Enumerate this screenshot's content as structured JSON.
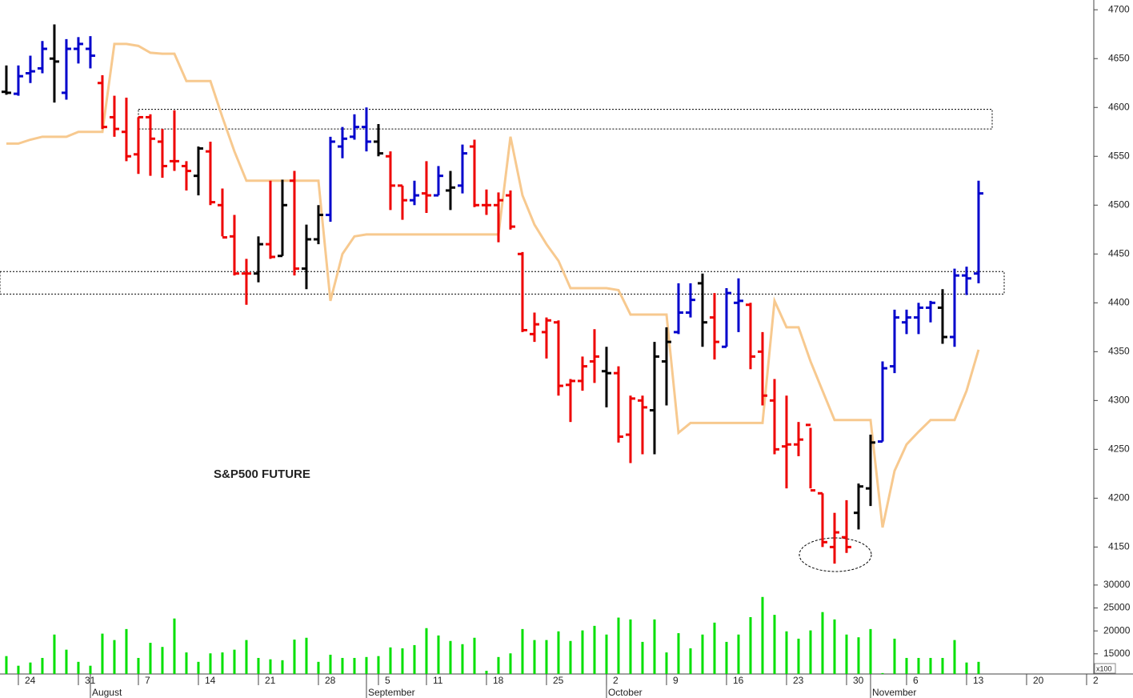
{
  "chart_data": {
    "type": "ohlc",
    "annotation": "S&P500 FUTURE",
    "categories": [
      null,
      null,
      null,
      null,
      null,
      null,
      null,
      null,
      null,
      null,
      null,
      null,
      null,
      null,
      null,
      null,
      null,
      null,
      null,
      null,
      null,
      null,
      null,
      null,
      null,
      null,
      null,
      null,
      null,
      null,
      null,
      null,
      null,
      null,
      null,
      null,
      null,
      null,
      null,
      null,
      null,
      null,
      null,
      null,
      null,
      null,
      null,
      null,
      null,
      null,
      null,
      null,
      null,
      null,
      null,
      null,
      null,
      null,
      null,
      null,
      null,
      null,
      null,
      null,
      null,
      null,
      null,
      null,
      null,
      null,
      null,
      null,
      null,
      null,
      null,
      null,
      null,
      null,
      null,
      null,
      null,
      null
    ],
    "open": [
      4616,
      4614,
      4635,
      4640,
      4650,
      4615,
      4660,
      4660,
      4625,
      4590,
      4575,
      4552,
      4590,
      4565,
      4545,
      4540,
      4530,
      4555,
      4500,
      4468,
      4430,
      4430,
      4460,
      4448,
      4525,
      4435,
      4465,
      4490,
      4560,
      4570,
      4580,
      4565,
      4550,
      4520,
      4505,
      4512,
      4510,
      4515,
      4520,
      4560,
      4500,
      4500,
      4510,
      4450,
      4368,
      4370,
      4380,
      4316,
      4320,
      4340,
      4330,
      4328,
      4265,
      4300,
      4290,
      4340,
      4370,
      4390,
      4420,
      4385,
      4355,
      4400,
      4398,
      4350,
      4300,
      4253,
      4255,
      4275,
      4205,
      4150,
      4160,
      4185,
      4210,
      4258,
      4335,
      4380,
      4385,
      4395,
      4395,
      4365,
      4428,
      4430
    ],
    "high": [
      4643,
      4643,
      4653,
      4668,
      4685,
      4670,
      4672,
      4673,
      4633,
      4612,
      4610,
      4590,
      4593,
      4578,
      4597,
      4545,
      4560,
      4565,
      4517,
      4490,
      4445,
      4468,
      4525,
      4526,
      4535,
      4480,
      4500,
      4570,
      4580,
      4593,
      4600,
      4583,
      4555,
      4520,
      4525,
      4545,
      4540,
      4535,
      4562,
      4567,
      4516,
      4513,
      4515,
      4452,
      4390,
      4385,
      4382,
      4322,
      4345,
      4373,
      4355,
      4335,
      4305,
      4305,
      4360,
      4375,
      4420,
      4420,
      4430,
      4410,
      4415,
      4425,
      4400,
      4370,
      4322,
      4305,
      4278,
      4272,
      4205,
      4185,
      4198,
      4215,
      4265,
      4340,
      4393,
      4393,
      4400,
      4402,
      4414,
      4435,
      4437,
      4525
    ],
    "low": [
      4613,
      4612,
      4625,
      4635,
      4605,
      4608,
      4645,
      4640,
      4578,
      4570,
      4545,
      4532,
      4530,
      4528,
      4535,
      4515,
      4510,
      4500,
      4468,
      4428,
      4398,
      4421,
      4445,
      4448,
      4428,
      4414,
      4460,
      4483,
      4548,
      4567,
      4555,
      4550,
      4495,
      4485,
      4500,
      4492,
      4510,
      4495,
      4512,
      4498,
      4490,
      4462,
      4475,
      4370,
      4360,
      4343,
      4305,
      4278,
      4310,
      4318,
      4293,
      4257,
      4236,
      4245,
      4245,
      4295,
      4368,
      4385,
      4355,
      4342,
      4355,
      4370,
      4332,
      4295,
      4245,
      4210,
      4243,
      4210,
      4150,
      4133,
      4144,
      4168,
      4192,
      4258,
      4328,
      4368,
      4368,
      4380,
      4358,
      4355,
      4408,
      4420
    ],
    "close": [
      4615,
      4632,
      4637,
      4660,
      4647,
      4660,
      4665,
      4653,
      4580,
      4578,
      4550,
      4590,
      4568,
      4540,
      4545,
      4535,
      4558,
      4503,
      4467,
      4430,
      4430,
      4460,
      4447,
      4500,
      4435,
      4465,
      4490,
      4565,
      4568,
      4580,
      4565,
      4553,
      4520,
      4505,
      4510,
      4510,
      4530,
      4518,
      4553,
      4500,
      4500,
      4505,
      4478,
      4372,
      4378,
      4382,
      4315,
      4320,
      4335,
      4345,
      4328,
      4263,
      4302,
      4293,
      4345,
      4360,
      4390,
      4403,
      4380,
      4360,
      4410,
      4402,
      4345,
      4305,
      4250,
      4255,
      4260,
      4208,
      4155,
      4165,
      4150,
      4212,
      4257,
      4333,
      4385,
      4385,
      4395,
      4400,
      4365,
      4428,
      4425,
      4512
    ],
    "colors": [
      "#000000",
      "#0000cc",
      "#0000cc",
      "#0000cc",
      "#000000",
      "#0000cc",
      "#0000cc",
      "#0000cc",
      "#ee0000",
      "#ee0000",
      "#ee0000",
      "#ee0000",
      "#ee0000",
      "#ee0000",
      "#ee0000",
      "#ee0000",
      "#000000",
      "#ee0000",
      "#ee0000",
      "#ee0000",
      "#ee0000",
      "#000000",
      "#ee0000",
      "#000000",
      "#ee0000",
      "#000000",
      "#000000",
      "#0000cc",
      "#0000cc",
      "#0000cc",
      "#0000cc",
      "#000000",
      "#ee0000",
      "#ee0000",
      "#0000cc",
      "#ee0000",
      "#0000cc",
      "#000000",
      "#0000cc",
      "#ee0000",
      "#ee0000",
      "#ee0000",
      "#ee0000",
      "#ee0000",
      "#ee0000",
      "#ee0000",
      "#ee0000",
      "#ee0000",
      "#ee0000",
      "#ee0000",
      "#000000",
      "#ee0000",
      "#ee0000",
      "#ee0000",
      "#000000",
      "#000000",
      "#0000cc",
      "#0000cc",
      "#000000",
      "#ee0000",
      "#0000cc",
      "#0000cc",
      "#ee0000",
      "#ee0000",
      "#ee0000",
      "#ee0000",
      "#ee0000",
      "#ee0000",
      "#ee0000",
      "#ee0000",
      "#ee0000",
      "#000000",
      "#000000",
      "#0000cc",
      "#0000cc",
      "#0000cc",
      "#0000cc",
      "#0000cc",
      "#000000",
      "#0000cc",
      "#0000cc",
      "#0000cc"
    ],
    "stop_line": {
      "color": "#f7c98f",
      "values": [
        4563,
        4563,
        4567,
        4570,
        4570,
        4570,
        4575,
        4575,
        4575,
        4665,
        4665,
        4663,
        4656,
        4655,
        4655,
        4627,
        4627,
        4627,
        4590,
        4555,
        4525,
        4525,
        4525,
        4525,
        4525,
        4525,
        4525,
        4402,
        4450,
        4468,
        4470,
        4470,
        4470,
        4470,
        4470,
        4470,
        4470,
        4470,
        4470,
        4470,
        4470,
        4470,
        4570,
        4510,
        4480,
        4460,
        4443,
        4415,
        4415,
        4415,
        4415,
        4413,
        4388,
        4388,
        4388,
        4388,
        4267,
        4277,
        4277,
        4277,
        4277,
        4277,
        4277,
        4277,
        4402,
        4375,
        4375,
        4340,
        4310,
        4280,
        4280,
        4280,
        4280,
        4170,
        4228,
        4255,
        4268,
        4280,
        4280,
        4280,
        4310,
        4352
      ]
    },
    "zones": [
      [
        4578,
        4598
      ],
      [
        4409,
        4432
      ]
    ],
    "xlim": [
      -0.53,
      90.6
    ],
    "ylim": [
      4120,
      4710
    ],
    "yticks": [
      4150,
      4200,
      4250,
      4300,
      4350,
      4400,
      4450,
      4500,
      4550,
      4600,
      4650,
      4700
    ],
    "xticks": [
      {
        "value": 1,
        "label": "24"
      },
      {
        "value": 6,
        "label": "31"
      },
      {
        "value": 11,
        "label": "7"
      },
      {
        "value": 16,
        "label": "14"
      },
      {
        "value": 21,
        "label": "21"
      },
      {
        "value": 26,
        "label": "28"
      },
      {
        "value": 31,
        "label": "5"
      },
      {
        "value": 35,
        "label": "11"
      },
      {
        "value": 40,
        "label": "18"
      },
      {
        "value": 45,
        "label": "25"
      },
      {
        "value": 50,
        "label": "2"
      },
      {
        "value": 55,
        "label": "9"
      },
      {
        "value": 60,
        "label": "16"
      },
      {
        "value": 65,
        "label": "23"
      },
      {
        "value": 70,
        "label": "30"
      },
      {
        "value": 75,
        "label": "6"
      },
      {
        "value": 80,
        "label": "13"
      },
      {
        "value": 85,
        "label": "20"
      },
      {
        "value": 90,
        "label": "2"
      }
    ],
    "month_ticks": [
      {
        "value": 7,
        "label": "August"
      },
      {
        "value": 30,
        "label": "September"
      },
      {
        "value": 50,
        "label": "October"
      },
      {
        "value": 72,
        "label": "November"
      }
    ],
    "volume": {
      "color": "#00e000",
      "unit_label": "x100",
      "ylim": [
        10600,
        31900
      ],
      "yticks": [
        15000,
        20000,
        25000,
        30000
      ],
      "values": [
        14500,
        12400,
        13100,
        14100,
        19200,
        15900,
        13250,
        12400,
        19400,
        18000,
        20400,
        14100,
        17400,
        16500,
        22700,
        15300,
        13250,
        15100,
        15300,
        15900,
        18000,
        14100,
        13800,
        13600,
        18100,
        18500,
        13250,
        14800,
        14100,
        14100,
        14300,
        14500,
        16400,
        16200,
        16900,
        20600,
        19000,
        17800,
        17100,
        18500,
        11300,
        14300,
        15100,
        20400,
        18000,
        18000,
        19900,
        17800,
        20100,
        21100,
        19200,
        22900,
        22500,
        17600,
        22500,
        15300,
        19500,
        16200,
        19200,
        21800,
        17600,
        19200,
        23000,
        27400,
        23500,
        19900,
        18300,
        20100,
        24100,
        22500,
        19200,
        18600,
        20400,
        10800,
        18300,
        14100,
        14100,
        14100,
        14100,
        18000,
        13100,
        13250
      ]
    }
  }
}
